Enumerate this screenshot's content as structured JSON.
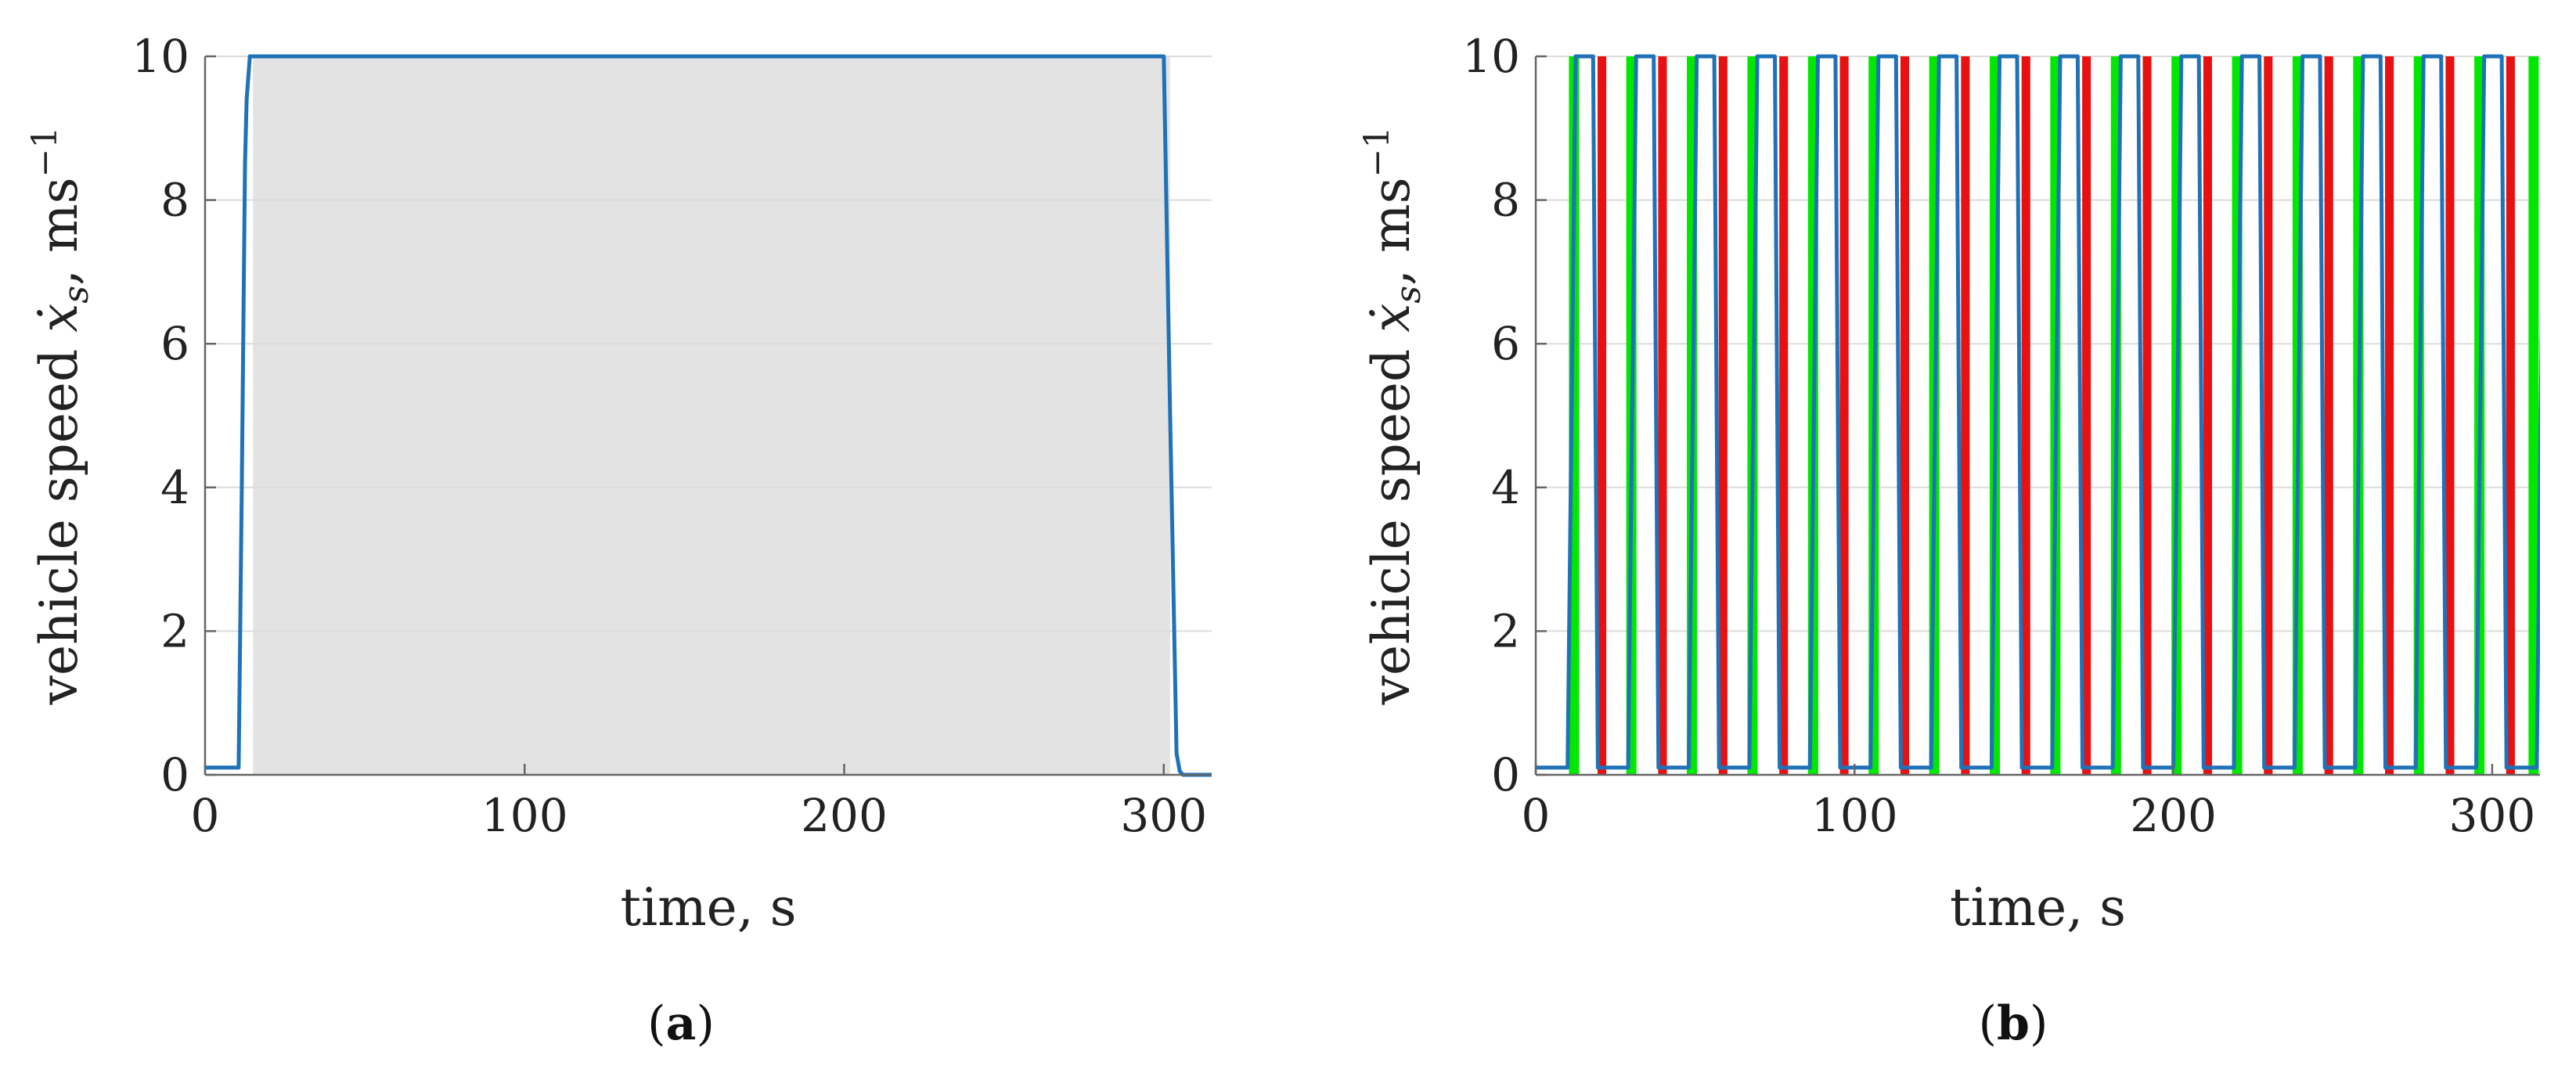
{
  "chart_data": [
    {
      "id": "a",
      "panel_label_open": "(",
      "panel_label": "a",
      "panel_label_close": ")",
      "type": "line",
      "xlabel": "time, s",
      "ylabel_main": "vehicle speed",
      "ylabel_symbol": "ẋ",
      "ylabel_subscript": "s",
      "ylabel_unit": ", ms",
      "ylabel_exp": "−1",
      "xlim": [
        0,
        315
      ],
      "ylim": [
        0,
        10
      ],
      "xticks": [
        0,
        100,
        200,
        300
      ],
      "yticks": [
        0,
        2,
        4,
        6,
        8,
        10
      ],
      "grid": "horizontal",
      "shaded_regions": [
        {
          "x": [
            15,
            302
          ],
          "color": "#e3e3e3"
        }
      ],
      "series": [
        {
          "color": "#1f72b8",
          "x": [
            0,
            10.5,
            11.5,
            12.5,
            13,
            14,
            300,
            302,
            304,
            305,
            306,
            315
          ],
          "y": [
            0.1,
            0.1,
            4.0,
            8.5,
            9.4,
            10,
            10,
            5,
            0.3,
            0.05,
            0,
            0
          ]
        }
      ]
    },
    {
      "id": "b",
      "panel_label_open": "(",
      "panel_label": "b",
      "panel_label_close": ")",
      "type": "line",
      "xlabel": "time, s",
      "ylabel_main": "vehicle speed",
      "ylabel_symbol": "ẋ",
      "ylabel_subscript": "s",
      "ylabel_unit": ", ms",
      "ylabel_exp": "−1",
      "xlim": [
        0,
        315
      ],
      "ylim": [
        0,
        10
      ],
      "xticks": [
        0,
        100,
        200,
        300
      ],
      "yticks": [
        0,
        2,
        4,
        6,
        8,
        10
      ],
      "grid": "horizontal",
      "green_bars_x": [
        12,
        30,
        49,
        68,
        87,
        106,
        125,
        144,
        163,
        182,
        201,
        220,
        239,
        258,
        277,
        296,
        313
      ],
      "red_bars_x": [
        21,
        40,
        59,
        78,
        97,
        116,
        135,
        154,
        173,
        192,
        211,
        230,
        249,
        268,
        287,
        306
      ],
      "bar_colors": {
        "green": "#00e800",
        "red": "#e81010"
      },
      "series": [
        {
          "color": "#1f72b8",
          "period": 19,
          "start": 10,
          "rise": 2.5,
          "high": 5.5,
          "fall": 1.5,
          "low_value": 0.1,
          "high_value": 10,
          "initial_low_until": 10
        }
      ]
    }
  ]
}
